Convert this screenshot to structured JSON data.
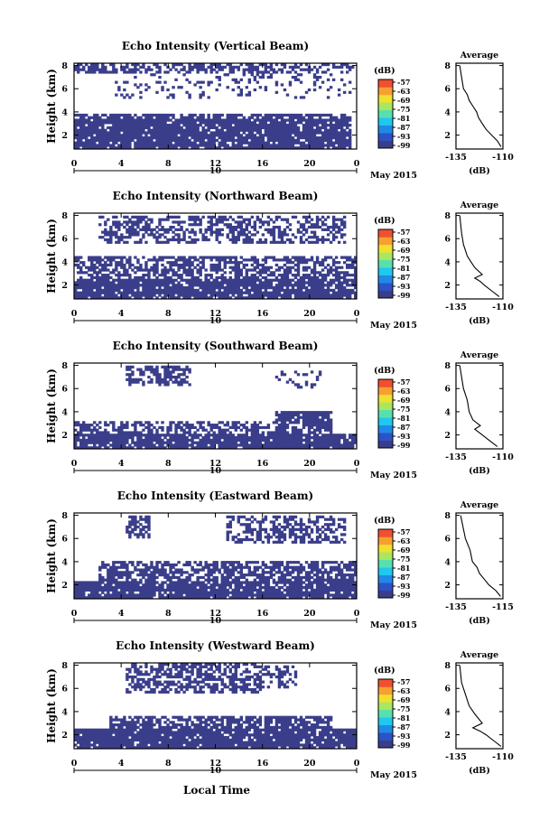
{
  "figure": {
    "xlabel": "Local Time",
    "date_label": "May 2015",
    "date_tick": "10",
    "colorbar_unit": "(dB)",
    "colorbar_ticks": [
      "-57",
      "-63",
      "-69",
      "-75",
      "-81",
      "-87",
      "-93",
      "-99"
    ],
    "colorbar_colors": [
      "#3a3e8a",
      "#2c52c8",
      "#1f8ae6",
      "#20c7ee",
      "#56e0b0",
      "#a8e860",
      "#f0e030",
      "#f7a030",
      "#f05030"
    ],
    "main_color": "#3a3e8a"
  },
  "chart_data": [
    {
      "type": "heatmap",
      "title": "Echo Intensity (Vertical Beam)",
      "ylabel": "Height (km)",
      "x_ticks": [
        "0",
        "4",
        "8",
        "12",
        "16",
        "20",
        "0"
      ],
      "xlim": [
        0,
        24
      ],
      "y_ticks": [
        "2",
        "4",
        "6",
        "8"
      ],
      "ylim": [
        0.8,
        8.2
      ],
      "echo_regions": [
        {
          "x0": 0,
          "x1": 23.5,
          "y0": 0.8,
          "y1": 3.5,
          "density": 0.9
        },
        {
          "x0": 0,
          "x1": 23.5,
          "y0": 3.5,
          "y1": 3.8,
          "density": 0.7
        },
        {
          "x0": 0,
          "x1": 24,
          "y0": 7.3,
          "y1": 8.2,
          "density": 0.55
        },
        {
          "x0": 3.5,
          "x1": 23.5,
          "y0": 5.2,
          "y1": 7.3,
          "density": 0.15
        }
      ],
      "profile": {
        "title": "Average",
        "xlabel": "(dB)",
        "x_ticks": [
          "-135",
          "-110"
        ],
        "xlim": [
          -135,
          -110
        ],
        "y_ticks": [
          "2",
          "4",
          "6",
          "8"
        ],
        "ylim": [
          0.8,
          8.2
        ],
        "x": [
          -111,
          -113,
          -116,
          -119,
          -121,
          -123,
          -124,
          -126,
          -128,
          -129,
          -131,
          -132,
          -133
        ],
        "y": [
          1.0,
          1.5,
          2.0,
          2.5,
          3.0,
          3.5,
          4.0,
          4.5,
          5.0,
          5.5,
          6.0,
          7.0,
          8.0
        ]
      }
    },
    {
      "type": "heatmap",
      "title": "Echo Intensity (Northward Beam)",
      "ylabel": "Height (km)",
      "x_ticks": [
        "0",
        "4",
        "8",
        "12",
        "16",
        "20",
        "0"
      ],
      "xlim": [
        0,
        24
      ],
      "y_ticks": [
        "2",
        "4",
        "6",
        "8"
      ],
      "ylim": [
        0.8,
        8.2
      ],
      "echo_regions": [
        {
          "x0": 0,
          "x1": 24,
          "y0": 0.8,
          "y1": 2.6,
          "density": 0.9
        },
        {
          "x0": 0,
          "x1": 24,
          "y0": 2.6,
          "y1": 4.4,
          "density": 0.6
        },
        {
          "x0": 2,
          "x1": 23,
          "y0": 5.5,
          "y1": 8.0,
          "density": 0.5
        }
      ],
      "profile": {
        "title": "Average",
        "xlabel": "(dB)",
        "x_ticks": [
          "-135",
          "-110"
        ],
        "xlim": [
          -135,
          -110
        ],
        "y_ticks": [
          "2",
          "4",
          "6",
          "8"
        ],
        "ylim": [
          0.8,
          8.2
        ],
        "x": [
          -112,
          -116,
          -120,
          -122,
          -125,
          -121,
          -125,
          -127,
          -129,
          -131,
          -132,
          -133
        ],
        "y": [
          1.0,
          1.5,
          2.0,
          2.3,
          2.6,
          2.9,
          3.5,
          4.0,
          4.5,
          5.5,
          6.5,
          8.0
        ]
      }
    },
    {
      "type": "heatmap",
      "title": "Echo Intensity (Southward Beam)",
      "ylabel": "Height (km)",
      "x_ticks": [
        "0",
        "4",
        "8",
        "12",
        "16",
        "20",
        "0"
      ],
      "xlim": [
        0,
        24
      ],
      "y_ticks": [
        "2",
        "4",
        "6",
        "8"
      ],
      "ylim": [
        0.8,
        8.2
      ],
      "echo_regions": [
        {
          "x0": 0,
          "x1": 24,
          "y0": 0.8,
          "y1": 2.0,
          "density": 0.9
        },
        {
          "x0": 0,
          "x1": 22,
          "y0": 2.0,
          "y1": 3.2,
          "density": 0.55
        },
        {
          "x0": 17,
          "x1": 22,
          "y0": 2.6,
          "y1": 4.0,
          "density": 0.8
        },
        {
          "x0": 4.5,
          "x1": 10,
          "y0": 6.2,
          "y1": 8.0,
          "density": 0.6
        },
        {
          "x0": 17,
          "x1": 21,
          "y0": 6.0,
          "y1": 7.6,
          "density": 0.2
        }
      ],
      "profile": {
        "title": "Average",
        "xlabel": "(dB)",
        "x_ticks": [
          "-135",
          "-110"
        ],
        "xlim": [
          -135,
          -110
        ],
        "y_ticks": [
          "2",
          "4",
          "6",
          "8"
        ],
        "ylim": [
          0.8,
          8.2
        ],
        "x": [
          -113,
          -117,
          -121,
          -125,
          -122,
          -126,
          -128,
          -129,
          -131,
          -132,
          -133
        ],
        "y": [
          1.0,
          1.5,
          2.0,
          2.5,
          2.8,
          3.3,
          4.0,
          5.0,
          6.0,
          7.0,
          8.0
        ]
      }
    },
    {
      "type": "heatmap",
      "title": "Echo Intensity (Eastward Beam)",
      "ylabel": "Height (km)",
      "x_ticks": [
        "0",
        "4",
        "8",
        "12",
        "16",
        "20",
        "0"
      ],
      "xlim": [
        0,
        24
      ],
      "y_ticks": [
        "2",
        "4",
        "6",
        "8"
      ],
      "ylim": [
        0.8,
        8.2
      ],
      "echo_regions": [
        {
          "x0": 0,
          "x1": 24,
          "y0": 0.8,
          "y1": 2.4,
          "density": 0.9
        },
        {
          "x0": 2,
          "x1": 24,
          "y0": 2.4,
          "y1": 4.0,
          "density": 0.65
        },
        {
          "x0": 13,
          "x1": 23,
          "y0": 5.5,
          "y1": 8.0,
          "density": 0.5
        },
        {
          "x0": 4.5,
          "x1": 6.5,
          "y0": 6.0,
          "y1": 8.0,
          "density": 0.6
        }
      ],
      "profile": {
        "title": "Average",
        "xlabel": "(dB)",
        "x_ticks": [
          "-135",
          "-115"
        ],
        "xlim": [
          -135,
          -115
        ],
        "y_ticks": [
          "2",
          "4",
          "6",
          "8"
        ],
        "ylim": [
          0.8,
          8.2
        ],
        "x": [
          -116,
          -118,
          -121,
          -123,
          -125,
          -126,
          -128,
          -129,
          -131,
          -132,
          -133
        ],
        "y": [
          1.0,
          1.5,
          2.0,
          2.5,
          3.0,
          3.5,
          4.0,
          5.0,
          6.0,
          7.0,
          8.0
        ]
      }
    },
    {
      "type": "heatmap",
      "title": "Echo Intensity (Westward Beam)",
      "ylabel": "Height (km)",
      "x_ticks": [
        "0",
        "4",
        "8",
        "12",
        "16",
        "20",
        "0"
      ],
      "xlim": [
        0,
        24
      ],
      "y_ticks": [
        "2",
        "4",
        "6",
        "8"
      ],
      "ylim": [
        0.8,
        8.2
      ],
      "echo_regions": [
        {
          "x0": 0,
          "x1": 24,
          "y0": 0.8,
          "y1": 2.5,
          "density": 0.9
        },
        {
          "x0": 3,
          "x1": 22,
          "y0": 2.5,
          "y1": 3.6,
          "density": 0.7
        },
        {
          "x0": 4.5,
          "x1": 16,
          "y0": 5.6,
          "y1": 8.1,
          "density": 0.55
        },
        {
          "x0": 16,
          "x1": 19,
          "y0": 6.0,
          "y1": 8.0,
          "density": 0.4
        }
      ],
      "profile": {
        "title": "Average",
        "xlabel": "(dB)",
        "x_ticks": [
          "-135",
          "-110"
        ],
        "xlim": [
          -135,
          -110
        ],
        "y_ticks": [
          "2",
          "4",
          "6",
          "8"
        ],
        "ylim": [
          0.8,
          8.2
        ],
        "x": [
          -111,
          -115,
          -119,
          -122,
          -126,
          -121,
          -125,
          -128,
          -130,
          -132,
          -133
        ],
        "y": [
          1.0,
          1.5,
          2.0,
          2.3,
          2.6,
          3.0,
          3.8,
          4.5,
          5.5,
          6.5,
          8.0
        ]
      }
    }
  ]
}
